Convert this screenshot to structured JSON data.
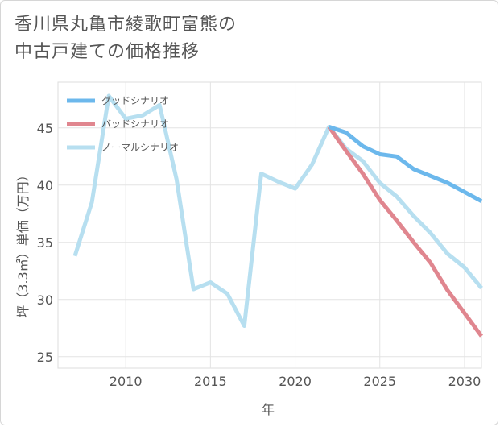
{
  "title": "香川県丸亀市綾歌町富熊の\n中古戸建ての価格推移",
  "chart_data": {
    "type": "line",
    "title": "香川県丸亀市綾歌町富熊の中古戸建ての価格推移",
    "xlabel": "年",
    "ylabel": "坪（3.3㎡）単価（万円）",
    "xlim": [
      2006,
      2031
    ],
    "ylim": [
      24,
      49
    ],
    "xticks": [
      2010,
      2015,
      2020,
      2025,
      2030
    ],
    "yticks": [
      25,
      30,
      35,
      40,
      45
    ],
    "legend_position": "top-left",
    "series": [
      {
        "name": "グッドシナリオ",
        "color": "#6cb8ec",
        "x": [
          2022,
          2023,
          2024,
          2025,
          2026,
          2027,
          2028,
          2029,
          2030,
          2031
        ],
        "y": [
          45.1,
          44.6,
          43.4,
          42.7,
          42.5,
          41.4,
          40.8,
          40.2,
          39.4,
          38.6
        ]
      },
      {
        "name": "バッドシナリオ",
        "color": "#e0868f",
        "x": [
          2022,
          2023,
          2024,
          2025,
          2026,
          2027,
          2028,
          2029,
          2030,
          2031
        ],
        "y": [
          45.1,
          43.0,
          41.0,
          38.7,
          36.9,
          35.0,
          33.2,
          30.8,
          28.8,
          26.8
        ]
      },
      {
        "name": "ノーマルシナリオ",
        "color": "#b7dff0",
        "x": [
          2007,
          2008,
          2009,
          2010,
          2011,
          2012,
          2013,
          2014,
          2015,
          2016,
          2017,
          2018,
          2019,
          2020,
          2021,
          2022,
          2023,
          2024,
          2025,
          2026,
          2027,
          2028,
          2029,
          2030,
          2031
        ],
        "y": [
          33.8,
          38.5,
          47.8,
          45.8,
          46.1,
          47.0,
          40.5,
          30.9,
          31.5,
          30.5,
          27.7,
          41.0,
          40.3,
          39.7,
          41.8,
          45.1,
          43.2,
          42.1,
          40.2,
          39.0,
          37.3,
          35.8,
          34.0,
          32.8,
          31.0
        ]
      }
    ]
  }
}
